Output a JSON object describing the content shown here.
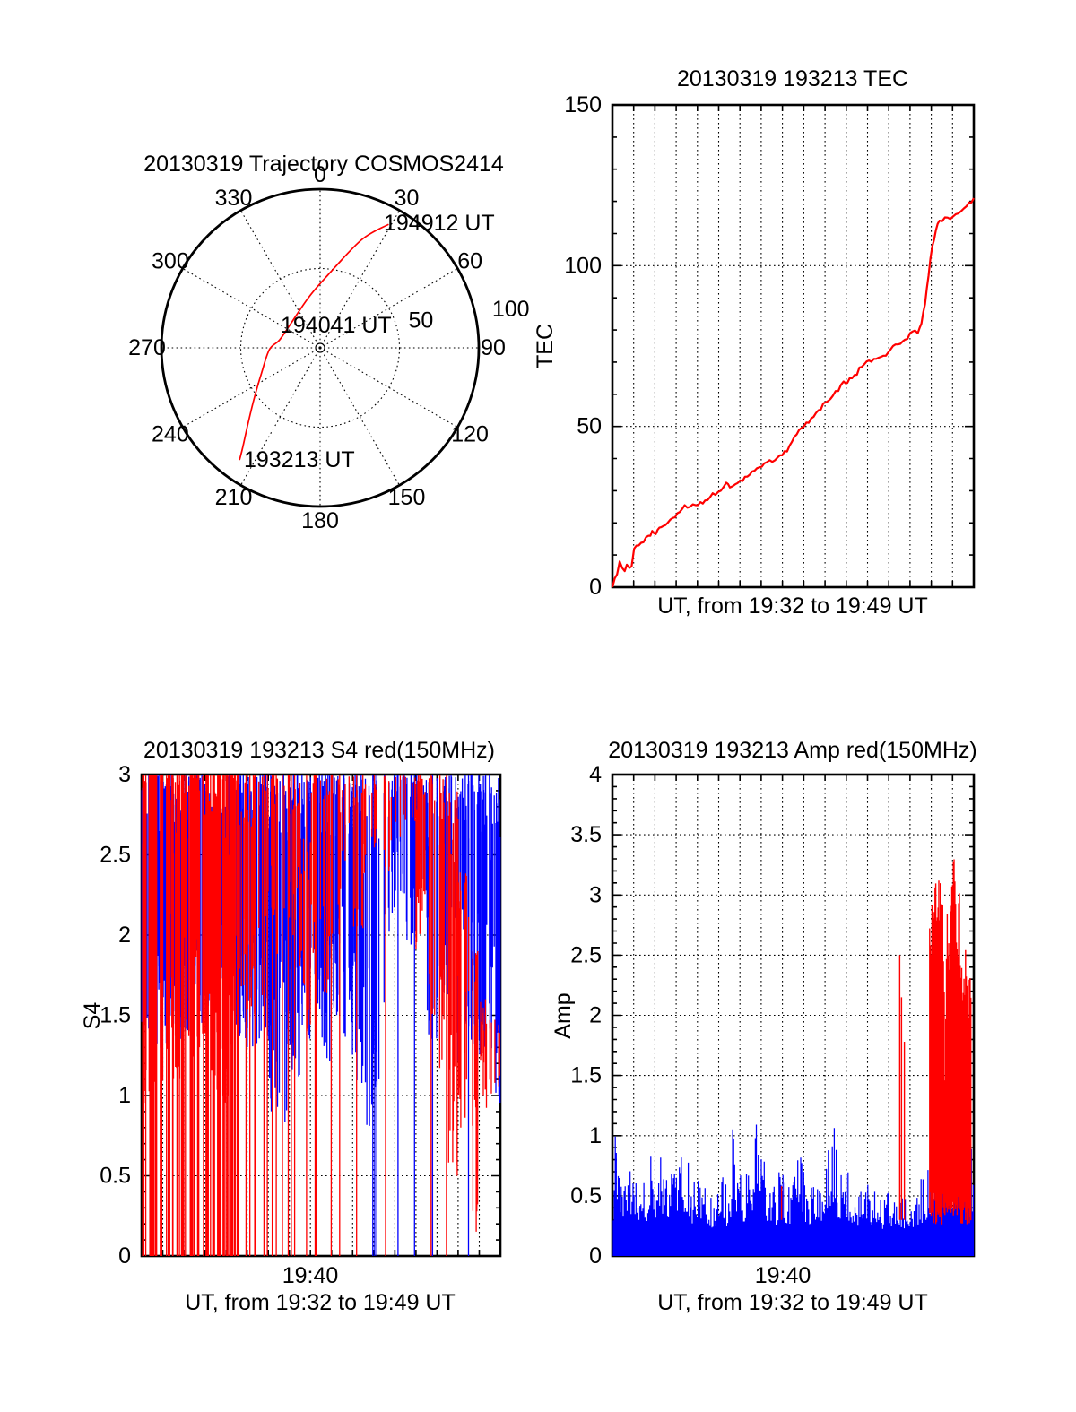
{
  "figure_bg": "#ffffff",
  "colors": {
    "red": "#ff0000",
    "blue": "#0000ff",
    "axis": "#000000"
  },
  "chart_data": [
    {
      "type": "polar-trajectory",
      "title": "20130319 Trajectory COSMOS2414",
      "azimuth_tick_labels": [
        "0",
        "30",
        "60",
        "90",
        "120",
        "150",
        "180",
        "210",
        "240",
        "270",
        "300",
        "330"
      ],
      "radial_tick_labels": [
        {
          "label": "50",
          "radius": 50,
          "angle_deg": 74.7
        },
        {
          "label": "100",
          "radius": 100,
          "angle_deg": 78.6
        }
      ],
      "radial_range": [
        0,
        100
      ],
      "grid_style": "dotted",
      "trajectory_color": "#ff0000",
      "trajectory_points_az_r": [
        [
          215.7,
          87
        ],
        [
          218,
          79
        ],
        [
          223,
          67
        ],
        [
          232,
          53
        ],
        [
          247,
          40
        ],
        [
          268,
          32
        ],
        [
          281,
          26
        ],
        [
          310,
          24
        ],
        [
          348,
          33
        ],
        [
          6,
          46
        ],
        [
          21,
          73
        ],
        [
          29,
          89
        ]
      ],
      "annotations": [
        {
          "label": "194912 UT",
          "x": 428,
          "y": 257
        },
        {
          "label": "194041 UT",
          "x": 313,
          "y": 371
        },
        {
          "label": "193213 UT",
          "x": 272,
          "y": 521
        }
      ]
    },
    {
      "type": "line",
      "title": "20130319 193213 TEC",
      "ylabel": "TEC",
      "xlabel": "UT, from 19:32 to 19:49 UT",
      "ylim": [
        0,
        150
      ],
      "yticks": [
        0,
        50,
        100,
        150
      ],
      "ygrid_at": [
        50,
        100
      ],
      "y_minor_step": 10,
      "x_minutes": 17,
      "grid": "dotted vertical line each minute",
      "line_color": "#ff0000",
      "points_frac_value": [
        [
          0,
          0
        ],
        [
          0.013,
          4
        ],
        [
          0.02,
          8
        ],
        [
          0.027,
          6
        ],
        [
          0.034,
          5
        ],
        [
          0.04,
          7
        ],
        [
          0.047,
          6
        ],
        [
          0.053,
          6.5
        ],
        [
          0.06,
          12
        ],
        [
          0.073,
          13
        ],
        [
          0.086,
          14
        ],
        [
          0.1,
          16
        ],
        [
          0.11,
          17.5
        ],
        [
          0.12,
          16.5
        ],
        [
          0.13,
          18.5
        ],
        [
          0.14,
          19
        ],
        [
          0.16,
          21
        ],
        [
          0.18,
          23
        ],
        [
          0.2,
          25.5
        ],
        [
          0.215,
          25
        ],
        [
          0.23,
          25.5
        ],
        [
          0.25,
          26
        ],
        [
          0.27,
          28
        ],
        [
          0.3,
          30
        ],
        [
          0.315,
          32.5
        ],
        [
          0.325,
          31
        ],
        [
          0.34,
          32
        ],
        [
          0.36,
          33
        ],
        [
          0.38,
          35
        ],
        [
          0.4,
          37
        ],
        [
          0.42,
          38.5
        ],
        [
          0.435,
          39.5
        ],
        [
          0.45,
          39.5
        ],
        [
          0.47,
          41
        ],
        [
          0.49,
          44
        ],
        [
          0.51,
          47.5
        ],
        [
          0.53,
          50
        ],
        [
          0.55,
          52.5
        ],
        [
          0.57,
          55
        ],
        [
          0.59,
          57.5
        ],
        [
          0.61,
          59.5
        ],
        [
          0.625,
          61
        ],
        [
          0.64,
          64
        ],
        [
          0.65,
          63.5
        ],
        [
          0.67,
          66
        ],
        [
          0.69,
          68.5
        ],
        [
          0.71,
          70.5
        ],
        [
          0.73,
          71
        ],
        [
          0.75,
          72
        ],
        [
          0.77,
          74
        ],
        [
          0.79,
          75.5
        ],
        [
          0.81,
          77
        ],
        [
          0.83,
          79.5
        ],
        [
          0.845,
          79
        ],
        [
          0.855,
          82
        ],
        [
          0.865,
          88
        ],
        [
          0.875,
          97
        ],
        [
          0.885,
          106
        ],
        [
          0.895,
          111
        ],
        [
          0.905,
          114
        ],
        [
          0.92,
          115
        ],
        [
          0.935,
          114.5
        ],
        [
          0.95,
          116
        ],
        [
          0.965,
          117
        ],
        [
          0.98,
          118.5
        ],
        [
          1,
          121
        ]
      ],
      "jitter": 1.6,
      "seed": 77001
    },
    {
      "type": "noisy-vertical-lines",
      "title": "20130319 193213 S4 red(150MHz)",
      "ylabel": "S4",
      "xlabel": "UT, from 19:32 to 19:49 UT",
      "xtick_label": "19:40",
      "xtick_minute": 8,
      "ylim": [
        0,
        3
      ],
      "yticks": [
        0,
        0.5,
        1,
        1.5,
        2,
        2.5,
        3
      ],
      "ygrid_at": [
        0.5,
        1,
        1.5,
        2,
        2.5
      ],
      "y_minor_step": 0.1,
      "x_minutes": 17,
      "series": [
        {
          "name": "red 150MHz",
          "color": "#ff0000"
        },
        {
          "name": "blue",
          "color": "#0000ff"
        }
      ],
      "seed": 20130319,
      "bin_format": [
        "red_top",
        "red_low",
        "red_count",
        "red_full_count",
        "blue_top",
        "blue_low",
        "blue_count",
        "blue_full_count"
      ],
      "bins": [
        [
          3,
          0.9,
          14,
          9,
          3,
          1.35,
          18,
          0
        ],
        [
          3,
          1.0,
          13,
          8,
          3,
          1.05,
          20,
          0
        ],
        [
          3,
          1.2,
          12,
          7,
          3,
          1.3,
          21,
          0
        ],
        [
          3,
          1.1,
          13,
          8,
          2.9,
          1.35,
          19,
          0
        ],
        [
          3,
          1.2,
          12,
          7,
          3,
          1.4,
          20,
          0
        ],
        [
          3,
          1.3,
          10,
          5,
          3,
          1.45,
          21,
          0
        ],
        [
          3,
          1.0,
          15,
          10,
          2.9,
          1.5,
          13,
          0
        ],
        [
          3,
          0.8,
          20,
          16,
          2.8,
          1.6,
          8,
          0
        ],
        [
          3,
          1.0,
          15,
          9,
          3,
          1.4,
          15,
          0
        ],
        [
          3,
          1.4,
          11,
          4,
          3,
          1.35,
          19,
          0
        ],
        [
          3,
          1.5,
          8,
          3,
          3,
          1.3,
          23,
          0
        ],
        [
          3,
          1.6,
          6,
          2,
          3,
          1.35,
          21,
          0
        ],
        [
          3,
          1.8,
          6,
          2,
          3,
          0.9,
          19,
          0
        ],
        [
          3,
          1.9,
          5,
          2,
          3,
          0.78,
          17,
          0
        ],
        [
          2.95,
          1.9,
          8,
          2,
          3,
          1.1,
          17,
          0
        ],
        [
          2.6,
          1.3,
          9,
          1,
          3,
          1.35,
          15,
          0
        ],
        [
          3,
          1.5,
          8,
          2,
          3,
          1.5,
          17,
          0
        ],
        [
          3,
          1.6,
          7,
          1,
          3,
          1.2,
          15,
          0
        ],
        [
          3,
          2.0,
          5,
          1,
          3,
          1.5,
          19,
          0
        ],
        [
          3,
          2.4,
          4,
          0,
          3,
          1.2,
          17,
          0
        ],
        [
          3,
          1.9,
          6,
          1,
          3,
          0.95,
          17,
          0
        ],
        [
          3,
          2.3,
          4,
          0,
          3,
          0.78,
          10,
          1
        ],
        [
          3,
          2.5,
          4,
          0,
          3,
          1.05,
          9,
          2
        ],
        [
          3,
          2.4,
          4,
          1,
          3,
          2.0,
          8,
          0
        ],
        [
          3,
          2.6,
          3,
          0,
          3,
          2.2,
          8,
          1
        ],
        [
          3,
          2.7,
          4,
          0,
          3,
          1.9,
          11,
          1
        ],
        [
          3,
          1.9,
          10,
          0,
          3,
          2.2,
          9,
          0
        ],
        [
          3,
          1.5,
          8,
          1,
          3,
          1.3,
          11,
          1
        ],
        [
          3,
          1.0,
          13,
          1,
          3,
          1.5,
          11,
          0
        ],
        [
          2.9,
          0.5,
          13,
          0,
          3,
          2.0,
          8,
          0
        ],
        [
          2.4,
          0.8,
          12,
          0,
          3,
          1.2,
          13,
          1
        ],
        [
          1.9,
          0.15,
          10,
          0,
          3,
          1.3,
          15,
          0
        ],
        [
          1.6,
          0.9,
          8,
          0,
          3,
          1.15,
          17,
          0
        ],
        [
          1.5,
          1.0,
          6,
          0,
          3,
          0.9,
          19,
          0
        ]
      ]
    },
    {
      "type": "noisy-fill",
      "title": "20130319 193213 Amp red(150MHz)",
      "ylabel": "Amp",
      "xlabel": "UT, from 19:32 to 19:49 UT",
      "xtick_label": "19:40",
      "xtick_minute": 8,
      "ylim": [
        0,
        4
      ],
      "yticks": [
        0,
        0.5,
        1,
        1.5,
        2,
        2.5,
        3,
        3.5,
        4
      ],
      "ygrid_at": [
        0.5,
        1,
        1.5,
        2,
        2.5,
        3,
        3.5
      ],
      "y_minor_step": 0.1,
      "x_minutes": 17,
      "seed": 19321349,
      "blue_color": "#0000ff",
      "red_color": "#ff0000",
      "blue_envelope_frac_top": [
        [
          0.002,
          0.65
        ],
        [
          0.008,
          1.08
        ],
        [
          0.015,
          1.0
        ],
        [
          0.022,
          0.85
        ],
        [
          0.03,
          0.55
        ],
        [
          0.042,
          0.62
        ],
        [
          0.052,
          0.78
        ],
        [
          0.062,
          0.6
        ],
        [
          0.072,
          0.62
        ],
        [
          0.082,
          0.75
        ],
        [
          0.092,
          0.6
        ],
        [
          0.1,
          0.82
        ],
        [
          0.106,
          1.02
        ],
        [
          0.115,
          0.65
        ],
        [
          0.125,
          0.7
        ],
        [
          0.135,
          0.88
        ],
        [
          0.145,
          0.75
        ],
        [
          0.158,
          0.7
        ],
        [
          0.168,
          0.72
        ],
        [
          0.178,
          0.65
        ],
        [
          0.188,
          0.86
        ],
        [
          0.198,
          0.8
        ],
        [
          0.207,
          0.87
        ],
        [
          0.216,
          0.6
        ],
        [
          0.227,
          0.68
        ],
        [
          0.237,
          0.75
        ],
        [
          0.247,
          0.62
        ],
        [
          0.257,
          0.66
        ],
        [
          0.267,
          0.58
        ],
        [
          0.278,
          0.55
        ],
        [
          0.288,
          0.6
        ],
        [
          0.297,
          0.85
        ],
        [
          0.307,
          0.65
        ],
        [
          0.317,
          0.6
        ],
        [
          0.327,
          0.72
        ],
        [
          0.333,
          1.43
        ],
        [
          0.341,
          0.95
        ],
        [
          0.351,
          0.68
        ],
        [
          0.362,
          0.65
        ],
        [
          0.372,
          0.72
        ],
        [
          0.381,
          1.0
        ],
        [
          0.39,
          0.85
        ],
        [
          0.397,
          1.33
        ],
        [
          0.405,
          1.3
        ],
        [
          0.415,
          0.9
        ],
        [
          0.426,
          0.68
        ],
        [
          0.437,
          0.65
        ],
        [
          0.447,
          0.58
        ],
        [
          0.457,
          0.62
        ],
        [
          0.466,
          0.95
        ],
        [
          0.476,
          0.68
        ],
        [
          0.487,
          0.62
        ],
        [
          0.497,
          0.65
        ],
        [
          0.505,
          1.08
        ],
        [
          0.514,
          1.05
        ],
        [
          0.525,
          0.75
        ],
        [
          0.536,
          0.65
        ],
        [
          0.547,
          0.62
        ],
        [
          0.557,
          0.6
        ],
        [
          0.567,
          0.7
        ],
        [
          0.578,
          0.68
        ],
        [
          0.587,
          0.85
        ],
        [
          0.596,
          0.95
        ],
        [
          0.606,
          0.88
        ],
        [
          0.614,
          1.15
        ],
        [
          0.625,
          0.75
        ],
        [
          0.637,
          0.7
        ],
        [
          0.648,
          0.72
        ],
        [
          0.659,
          0.68
        ],
        [
          0.67,
          0.62
        ],
        [
          0.681,
          0.6
        ],
        [
          0.692,
          0.55
        ],
        [
          0.703,
          0.58
        ],
        [
          0.714,
          0.65
        ],
        [
          0.725,
          0.55
        ],
        [
          0.736,
          0.52
        ],
        [
          0.747,
          0.5
        ],
        [
          0.758,
          0.55
        ],
        [
          0.769,
          0.58
        ],
        [
          0.78,
          0.6
        ],
        [
          0.791,
          0.62
        ],
        [
          0.801,
          0.55
        ],
        [
          0.812,
          0.5
        ],
        [
          0.823,
          0.52
        ],
        [
          0.834,
          0.58
        ],
        [
          0.845,
          0.62
        ],
        [
          0.856,
          0.65
        ],
        [
          0.866,
          0.7
        ],
        [
          0.876,
          0.75
        ],
        [
          0.886,
          0.8
        ],
        [
          0.896,
          0.9
        ],
        [
          0.905,
          1.5
        ],
        [
          0.915,
          0.95
        ],
        [
          0.925,
          0.9
        ],
        [
          0.935,
          0.95
        ],
        [
          0.945,
          0.9
        ],
        [
          0.955,
          1.05
        ],
        [
          0.965,
          1.1
        ],
        [
          0.975,
          1.2
        ],
        [
          0.985,
          1.25
        ],
        [
          0.995,
          0.85
        ]
      ],
      "red_spikes_frac_top": [
        [
          0.468,
          0.58
        ],
        [
          0.795,
          2.5
        ],
        [
          0.8,
          2.15
        ],
        [
          0.808,
          1.78
        ]
      ],
      "red_mass": {
        "from": 0.878,
        "to": 0.993,
        "bottom": 0.32,
        "tops": [
          [
            0.878,
            2.75
          ],
          [
            0.884,
            2.95
          ],
          [
            0.89,
            3.1
          ],
          [
            0.895,
            3.2
          ],
          [
            0.9,
            3.25
          ],
          [
            0.905,
            3.3
          ],
          [
            0.91,
            3.15
          ],
          [
            0.916,
            2.85
          ],
          [
            0.92,
            1.6
          ],
          [
            0.925,
            3.05
          ],
          [
            0.93,
            2.6
          ],
          [
            0.935,
            2.95
          ],
          [
            0.94,
            3.42
          ],
          [
            0.944,
            3.5
          ],
          [
            0.95,
            2.95
          ],
          [
            0.955,
            2.8
          ],
          [
            0.96,
            3.2
          ],
          [
            0.965,
            2.5
          ],
          [
            0.97,
            2.4
          ],
          [
            0.977,
            2.62
          ],
          [
            0.985,
            1.95
          ],
          [
            0.99,
            2.6
          ],
          [
            0.993,
            1.9
          ]
        ]
      }
    }
  ]
}
